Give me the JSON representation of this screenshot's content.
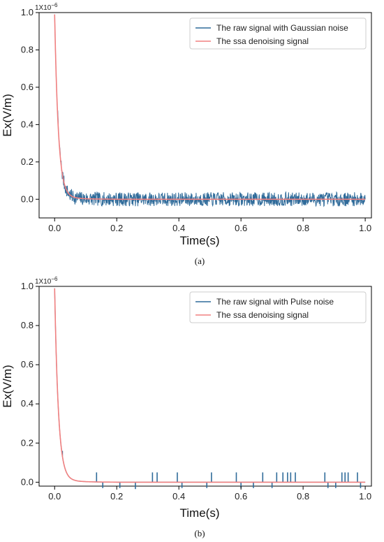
{
  "chart_data": [
    {
      "type": "line",
      "caption": "(a)",
      "scale_note": "1X10",
      "scale_exp": "−6",
      "xlabel": "Time(s)",
      "ylabel": "Ex(V/m)",
      "xlim": [
        -0.05,
        1.02
      ],
      "ylim": [
        -0.1,
        1.0
      ],
      "xticks": [
        0.0,
        0.2,
        0.4,
        0.6,
        0.8,
        1.0
      ],
      "xtick_labels": [
        "0.0",
        "0.2",
        "0.4",
        "0.6",
        "0.8",
        "1.0"
      ],
      "yticks": [
        0.0,
        0.2,
        0.4,
        0.6,
        0.8,
        1.0
      ],
      "ytick_labels": [
        "0.0",
        "0.2",
        "0.4",
        "0.6",
        "0.8",
        "1.0"
      ],
      "grid": false,
      "legend_position": "top-right",
      "series": [
        {
          "name": "The raw signal with Gaussian noise",
          "color": "#2f6b9a",
          "kind": "noisy",
          "noise_sigma": 0.025,
          "peak": 0.97,
          "decay_tau": 0.012
        },
        {
          "name": "The ssa denoising signal",
          "color": "#f08080",
          "kind": "clean",
          "peak": 0.97,
          "decay_tau": 0.012
        }
      ]
    },
    {
      "type": "line",
      "caption": "(b)",
      "scale_note": "1X10",
      "scale_exp": "−6",
      "xlabel": "Time(s)",
      "ylabel": "Ex(V/m)",
      "xlim": [
        -0.05,
        1.02
      ],
      "ylim": [
        -0.02,
        1.0
      ],
      "xticks": [
        0.0,
        0.2,
        0.4,
        0.6,
        0.8,
        1.0
      ],
      "xtick_labels": [
        "0.0",
        "0.2",
        "0.4",
        "0.6",
        "0.8",
        "1.0"
      ],
      "yticks": [
        0.0,
        0.2,
        0.4,
        0.6,
        0.8,
        1.0
      ],
      "ytick_labels": [
        "0.0",
        "0.2",
        "0.4",
        "0.6",
        "0.8",
        "1.0"
      ],
      "grid": false,
      "legend_position": "top-right",
      "series": [
        {
          "name": "The raw signal with Pulse noise",
          "color": "#2f6b9a",
          "kind": "pulse",
          "peak": 0.97,
          "decay_tau": 0.012,
          "pulses": [
            {
              "x": 0.025,
              "y": 0.16
            },
            {
              "x": 0.135,
              "y": 0.05
            },
            {
              "x": 0.155,
              "y": -0.03
            },
            {
              "x": 0.21,
              "y": -0.03
            },
            {
              "x": 0.26,
              "y": -0.035
            },
            {
              "x": 0.315,
              "y": 0.05
            },
            {
              "x": 0.33,
              "y": 0.05
            },
            {
              "x": 0.395,
              "y": 0.05
            },
            {
              "x": 0.41,
              "y": -0.03
            },
            {
              "x": 0.49,
              "y": -0.03
            },
            {
              "x": 0.505,
              "y": 0.05
            },
            {
              "x": 0.585,
              "y": 0.05
            },
            {
              "x": 0.6,
              "y": -0.03
            },
            {
              "x": 0.64,
              "y": -0.03
            },
            {
              "x": 0.67,
              "y": 0.05
            },
            {
              "x": 0.7,
              "y": -0.03
            },
            {
              "x": 0.715,
              "y": 0.05
            },
            {
              "x": 0.735,
              "y": 0.05
            },
            {
              "x": 0.75,
              "y": 0.05
            },
            {
              "x": 0.76,
              "y": 0.05
            },
            {
              "x": 0.775,
              "y": 0.05
            },
            {
              "x": 0.87,
              "y": 0.05
            },
            {
              "x": 0.88,
              "y": -0.03
            },
            {
              "x": 0.905,
              "y": -0.03
            },
            {
              "x": 0.925,
              "y": 0.05
            },
            {
              "x": 0.935,
              "y": 0.05
            },
            {
              "x": 0.945,
              "y": 0.05
            },
            {
              "x": 0.975,
              "y": 0.05
            },
            {
              "x": 0.985,
              "y": -0.03
            }
          ]
        },
        {
          "name": "The ssa denoising signal",
          "color": "#f08080",
          "kind": "clean",
          "peak": 0.97,
          "decay_tau": 0.012
        }
      ]
    }
  ]
}
